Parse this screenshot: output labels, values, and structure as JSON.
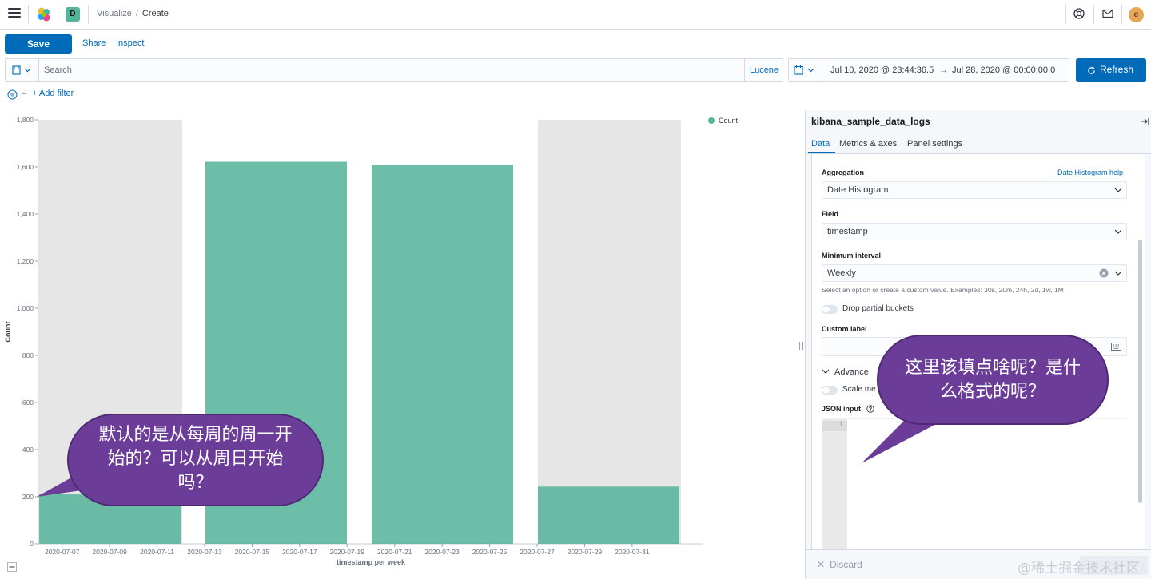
{
  "breadcrumbs": {
    "parent": "Visualize",
    "separator": "/",
    "current": "Create"
  },
  "space_initial": "D",
  "user_initial": "e",
  "toolbar": {
    "save": "Save",
    "share": "Share",
    "inspect": "Inspect"
  },
  "query": {
    "placeholder": "Search",
    "language": "Lucene"
  },
  "timepicker": {
    "start": "Jul 10, 2020 @ 23:44:36.5",
    "arrow": "→",
    "end": "Jul 28, 2020 @ 00:00:00.0",
    "refresh": "Refresh"
  },
  "filters": {
    "add": "+ Add filter"
  },
  "colors": {
    "series": "#54b399",
    "brand": "#006bb8",
    "partial": "#e6e6e6",
    "bubble": "#6b3d98"
  },
  "chart_data": {
    "type": "bar",
    "x": [
      "2020-07-06",
      "2020-07-13",
      "2020-07-20",
      "2020-07-27"
    ],
    "values": [
      210,
      1622,
      1608,
      243
    ],
    "partial_buckets": [
      "2020-07-06",
      "2020-07-27"
    ],
    "ylim": [
      0,
      1800
    ],
    "y_ticks": [
      "0",
      "200",
      "400",
      "600",
      "800",
      "1,000",
      "1,200",
      "1,400",
      "1,600",
      "1,800"
    ],
    "x_ticks": [
      "2020-07-07",
      "2020-07-09",
      "2020-07-11",
      "2020-07-13",
      "2020-07-15",
      "2020-07-17",
      "2020-07-19",
      "2020-07-21",
      "2020-07-23",
      "2020-07-25",
      "2020-07-27",
      "2020-07-29",
      "2020-07-31"
    ],
    "xlabel": "timestamp per week",
    "ylabel": "Count",
    "series": [
      {
        "name": "Count"
      }
    ],
    "legend": "top-right",
    "grid": false
  },
  "sidebar": {
    "index": "kibana_sample_data_logs",
    "tabs": [
      "Data",
      "Metrics & axes",
      "Panel settings"
    ],
    "aggregation": {
      "label": "Aggregation",
      "help": "Date Histogram help",
      "value": "Date Histogram"
    },
    "field": {
      "label": "Field",
      "value": "timestamp"
    },
    "interval": {
      "label": "Minimum interval",
      "value": "Weekly",
      "help": "Select an option or create a custom value. Examples: 30s, 20m, 24h, 2d, 1w, 1M"
    },
    "drop_partial": "Drop partial buckets",
    "custom_label": "Custom label",
    "advanced": "Advance",
    "scale_metric": "Scale me",
    "json_input": "JSON input",
    "line_number": "1",
    "discard": "Discard"
  },
  "annotations": {
    "left": [
      "默认的是从每周的周一开",
      "始的？可以从周日开始",
      "吗？"
    ],
    "right": [
      "这里该填点啥呢？是什",
      "么格式的呢？"
    ]
  },
  "watermark": "@稀土掘金技术社区"
}
